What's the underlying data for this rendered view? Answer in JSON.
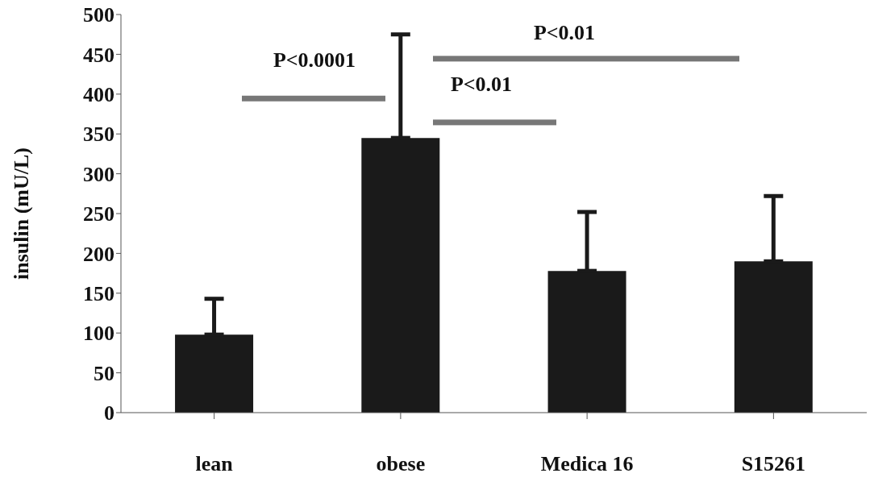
{
  "chart_data": {
    "type": "bar",
    "ylabel": "insulin (mU/L)",
    "categories": [
      "lean",
      "obese",
      "Medica 16",
      "S15261"
    ],
    "values": [
      98,
      345,
      178,
      190
    ],
    "errors": [
      [
        98,
        143
      ],
      [
        345,
        475
      ],
      [
        178,
        252
      ],
      [
        190,
        272
      ]
    ],
    "color": "#1a1a1a",
    "ylim": [
      0,
      500
    ],
    "yticks": [
      0,
      50,
      100,
      150,
      200,
      250,
      300,
      350,
      400,
      450,
      500
    ],
    "grid": false,
    "legend": false,
    "annotations": [
      "P<0.0001",
      "P<0.01",
      "P<0.01"
    ]
  }
}
